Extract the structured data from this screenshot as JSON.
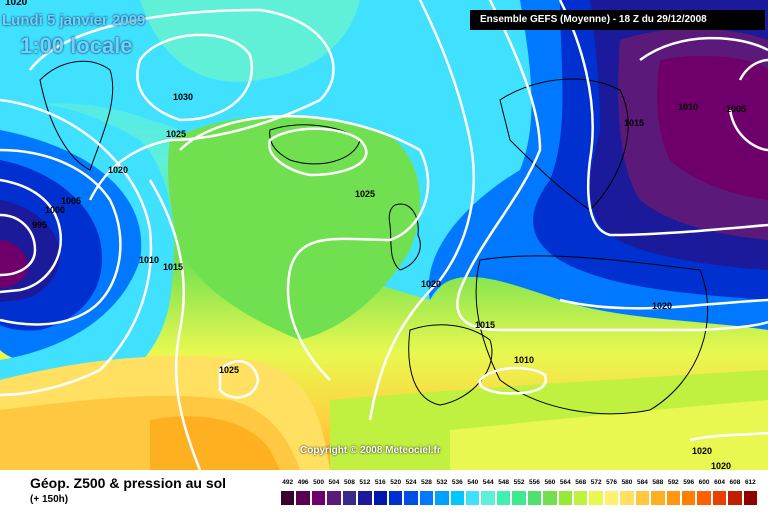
{
  "header": {
    "top_left_value": "1020",
    "date": "Lundi 5 janvier 2009",
    "time": "1:00 locale",
    "ensemble_info": "Ensemble GEFS (Moyenne)   - 18 Z du 29/12/2008"
  },
  "copyright": "Copyright © 2008 Meteociel.fr",
  "footer": {
    "title": "Géop. Z500 & pression au sol",
    "subtitle": "(+ 150h)"
  },
  "legend": {
    "levels": [
      "492",
      "496",
      "500",
      "504",
      "508",
      "512",
      "516",
      "520",
      "524",
      "528",
      "532",
      "536",
      "540",
      "544",
      "548",
      "552",
      "556",
      "560",
      "564",
      "568",
      "572",
      "576",
      "580",
      "584",
      "588",
      "592",
      "596",
      "600",
      "604",
      "608",
      "612"
    ],
    "colors": [
      "#3a0030",
      "#5a0050",
      "#6f006b",
      "#5b1a7a",
      "#3a2a8e",
      "#1a1a9a",
      "#0018b0",
      "#0030d0",
      "#0050e8",
      "#0078ff",
      "#00a0ff",
      "#00c8ff",
      "#40e0ff",
      "#60f0d8",
      "#40f0b0",
      "#40e890",
      "#50e070",
      "#70e050",
      "#98e838",
      "#c0f040",
      "#e8f850",
      "#fff070",
      "#ffe060",
      "#ffc840",
      "#ffb020",
      "#ff9810",
      "#ff8000",
      "#ff6000",
      "#e84000",
      "#c02000",
      "#900000"
    ]
  },
  "isobars": [
    "1030",
    "1025",
    "1020",
    "1005",
    "1000",
    "995",
    "1010",
    "1015",
    "1025",
    "1020",
    "1015",
    "1010",
    "1025",
    "1010",
    "1005",
    "1015",
    "1020",
    "1020",
    "1020"
  ]
}
